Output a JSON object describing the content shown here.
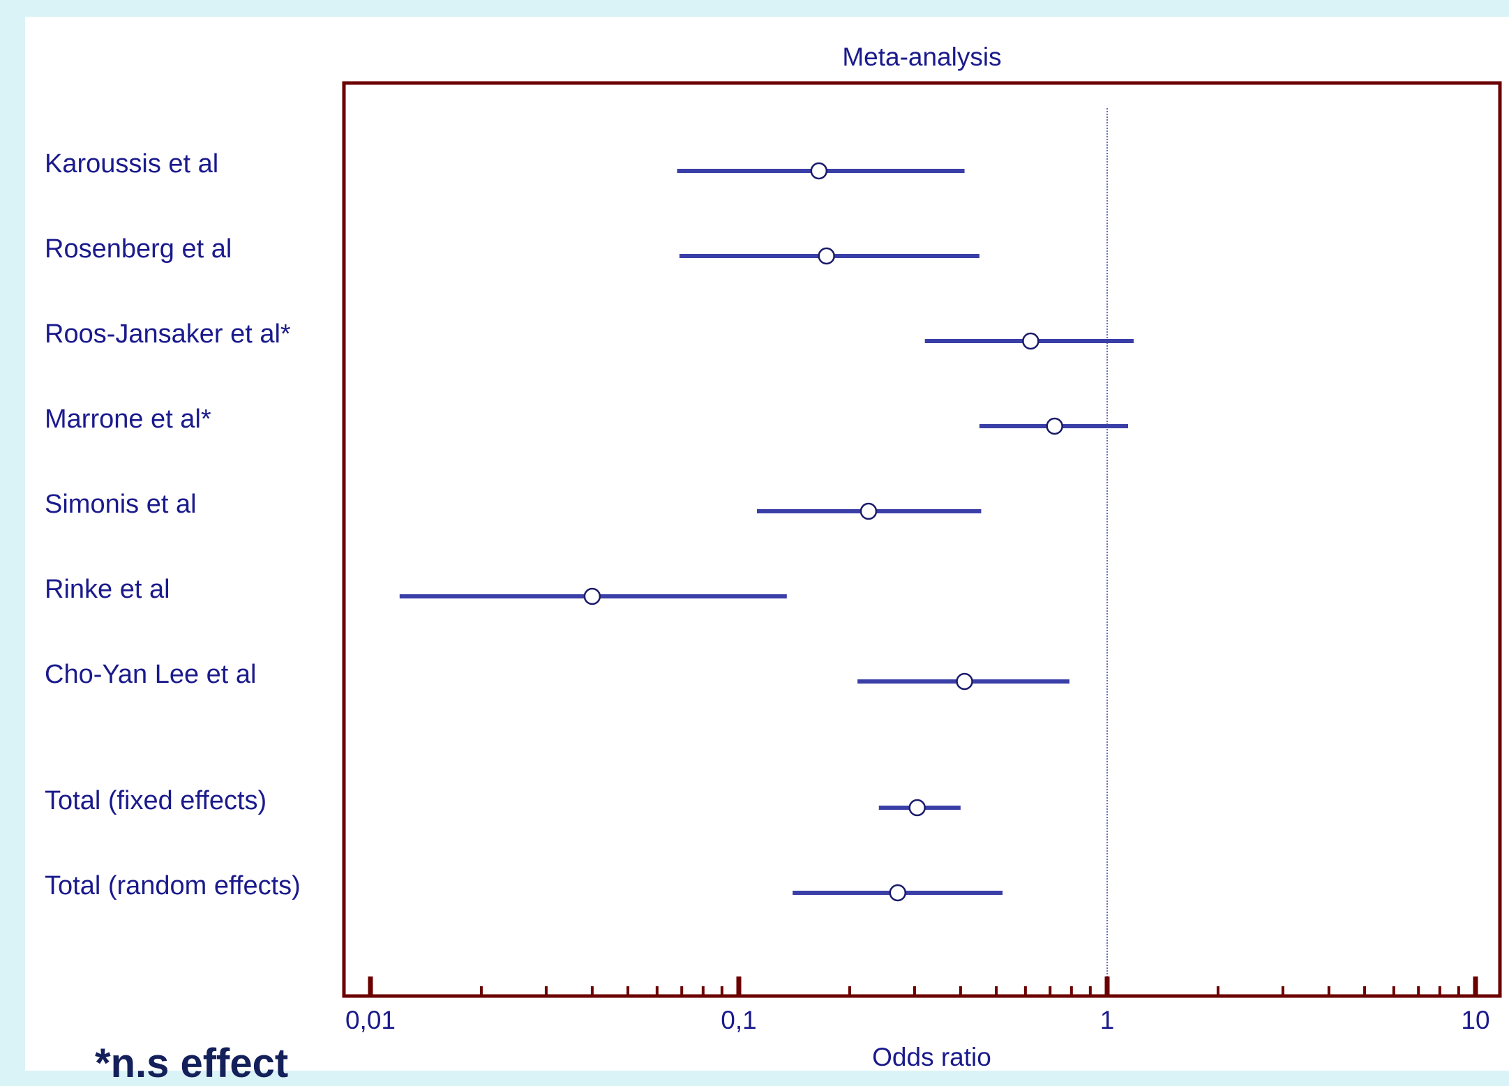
{
  "chart_data": {
    "type": "forest",
    "title": "Meta-analysis",
    "xlabel": "Odds ratio",
    "xscale": "log",
    "xlim": [
      0.009,
      12
    ],
    "xticks": [
      {
        "value": 0.01,
        "label": "0,01"
      },
      {
        "value": 0.1,
        "label": "0,1"
      },
      {
        "value": 1,
        "label": "1"
      },
      {
        "value": 10,
        "label": "10"
      }
    ],
    "reference_line": 1,
    "studies": [
      {
        "label": "Karoussis et al",
        "or": 0.165,
        "lower": 0.068,
        "upper": 0.41
      },
      {
        "label": "Rosenberg et al",
        "or": 0.173,
        "lower": 0.069,
        "upper": 0.45
      },
      {
        "label": "Roos-Jansaker et al*",
        "or": 0.62,
        "lower": 0.32,
        "upper": 1.18
      },
      {
        "label": "Marrone et al*",
        "or": 0.72,
        "lower": 0.45,
        "upper": 1.14
      },
      {
        "label": "Simonis et al",
        "or": 0.225,
        "lower": 0.112,
        "upper": 0.455
      },
      {
        "label": "Rinke et al",
        "or": 0.04,
        "lower": 0.012,
        "upper": 0.135
      },
      {
        "label": "Cho-Yan Lee et al",
        "or": 0.41,
        "lower": 0.21,
        "upper": 0.79
      }
    ],
    "totals": [
      {
        "label": "Total (fixed effects)",
        "or": 0.305,
        "lower": 0.24,
        "upper": 0.4
      },
      {
        "label": "Total (random effects)",
        "or": 0.27,
        "lower": 0.14,
        "upper": 0.52
      }
    ],
    "colors": {
      "frame": "#6b0000",
      "ci": "#3a3fa8",
      "text": "#1a1a8c",
      "reference": "#3a3fa8"
    }
  },
  "footnote": "*n.s effect"
}
